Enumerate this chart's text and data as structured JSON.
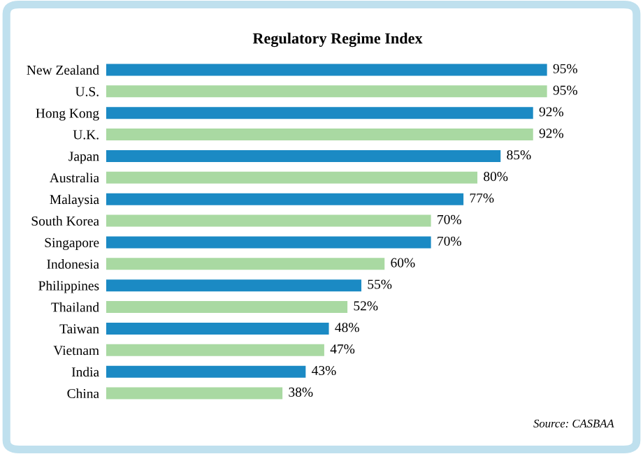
{
  "chart_data": {
    "type": "bar",
    "orientation": "horizontal",
    "title": "Regulatory Regime Index",
    "categories": [
      "New Zealand",
      "U.S.",
      "Hong Kong",
      "U.K.",
      "Japan",
      "Australia",
      "Malaysia",
      "South Korea",
      "Singapore",
      "Indonesia",
      "Philippines",
      "Thailand",
      "Taiwan",
      "Vietnam",
      "India",
      "China"
    ],
    "values": [
      95,
      95,
      92,
      92,
      85,
      80,
      77,
      70,
      70,
      60,
      55,
      52,
      48,
      47,
      43,
      38
    ],
    "colors": [
      "#1b8ac4",
      "#a9d9a2",
      "#1b8ac4",
      "#a9d9a2",
      "#1b8ac4",
      "#a9d9a2",
      "#1b8ac4",
      "#a9d9a2",
      "#1b8ac4",
      "#a9d9a2",
      "#1b8ac4",
      "#a9d9a2",
      "#1b8ac4",
      "#a9d9a2",
      "#1b8ac4",
      "#a9d9a2"
    ],
    "value_labels": [
      "95%",
      "95%",
      "92%",
      "92%",
      "85%",
      "80%",
      "77%",
      "70%",
      "70%",
      "60%",
      "55%",
      "52%",
      "48%",
      "47%",
      "43%",
      "38%"
    ],
    "annotations": [
      "Source: CASBAA"
    ]
  }
}
